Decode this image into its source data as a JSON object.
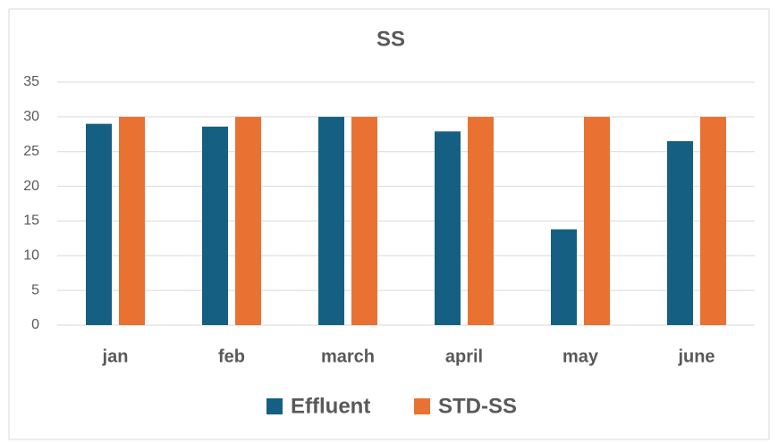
{
  "chart_data": {
    "type": "bar",
    "title": "SS",
    "categories": [
      "jan",
      "feb",
      "march",
      "april",
      "may",
      "june"
    ],
    "series": [
      {
        "name": "Effluent",
        "color": "#156082",
        "values": [
          29,
          28.6,
          30,
          27.9,
          13.8,
          26.5
        ]
      },
      {
        "name": "STD-SS",
        "color": "#e97132",
        "values": [
          30,
          30,
          30,
          30,
          30,
          30
        ]
      }
    ],
    "ylim": [
      0,
      35
    ],
    "yticks": [
      0,
      5,
      10,
      15,
      20,
      25,
      30,
      35
    ],
    "grid": true,
    "legend": "bottom"
  }
}
